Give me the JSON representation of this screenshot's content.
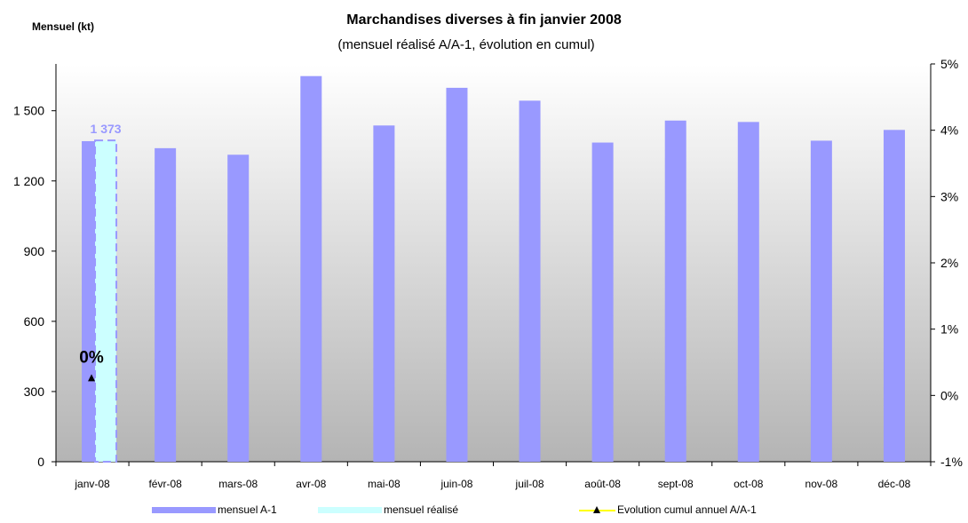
{
  "chart_data": {
    "type": "bar",
    "title": "Marchandises diverses à fin janvier 2008",
    "subtitle": "(mensuel réalisé A/A-1, évolution en cumul)",
    "ylabel": "Mensuel (kt)",
    "categories": [
      "janv-08",
      "févr-08",
      "mars-08",
      "avr-08",
      "mai-08",
      "juin-08",
      "juil-08",
      "août-08",
      "sept-08",
      "oct-08",
      "nov-08",
      "déc-08"
    ],
    "ylim": [
      0,
      1700
    ],
    "y_ticks": [
      "0",
      "300",
      "600",
      "900",
      "1 200",
      "1 500"
    ],
    "y_tick_values": [
      0,
      300,
      600,
      900,
      1200,
      1500
    ],
    "y2lim": [
      -1,
      5
    ],
    "y2_ticks": [
      "-1%",
      "0%",
      "1%",
      "2%",
      "3%",
      "4%",
      "5%"
    ],
    "y2_tick_values": [
      -1,
      0,
      1,
      2,
      3,
      4,
      5
    ],
    "series": [
      {
        "name": "mensuel A-1",
        "kind": "bar",
        "color": "#9999ff",
        "values": [
          1370,
          1340,
          1312,
          1648,
          1437,
          1598,
          1543,
          1364,
          1458,
          1452,
          1372,
          1418
        ]
      },
      {
        "name": "mensuel réalisé",
        "kind": "bar",
        "color": "#ccffff",
        "values": [
          1373,
          null,
          null,
          null,
          null,
          null,
          null,
          null,
          null,
          null,
          null,
          null
        ],
        "data_labels": [
          "1 373",
          null,
          null,
          null,
          null,
          null,
          null,
          null,
          null,
          null,
          null,
          null
        ]
      },
      {
        "name": "Evolution cumul annuel A/A-1",
        "kind": "line",
        "axis": "secondary",
        "color": "#ffff00",
        "marker_color": "#000000",
        "values": [
          0,
          null,
          null,
          null,
          null,
          null,
          null,
          null,
          null,
          null,
          null,
          null
        ],
        "data_labels": [
          "0%",
          null,
          null,
          null,
          null,
          null,
          null,
          null,
          null,
          null,
          null,
          null
        ]
      }
    ],
    "legend": "bottom",
    "grid": false,
    "plot_background": "gradient gray"
  }
}
